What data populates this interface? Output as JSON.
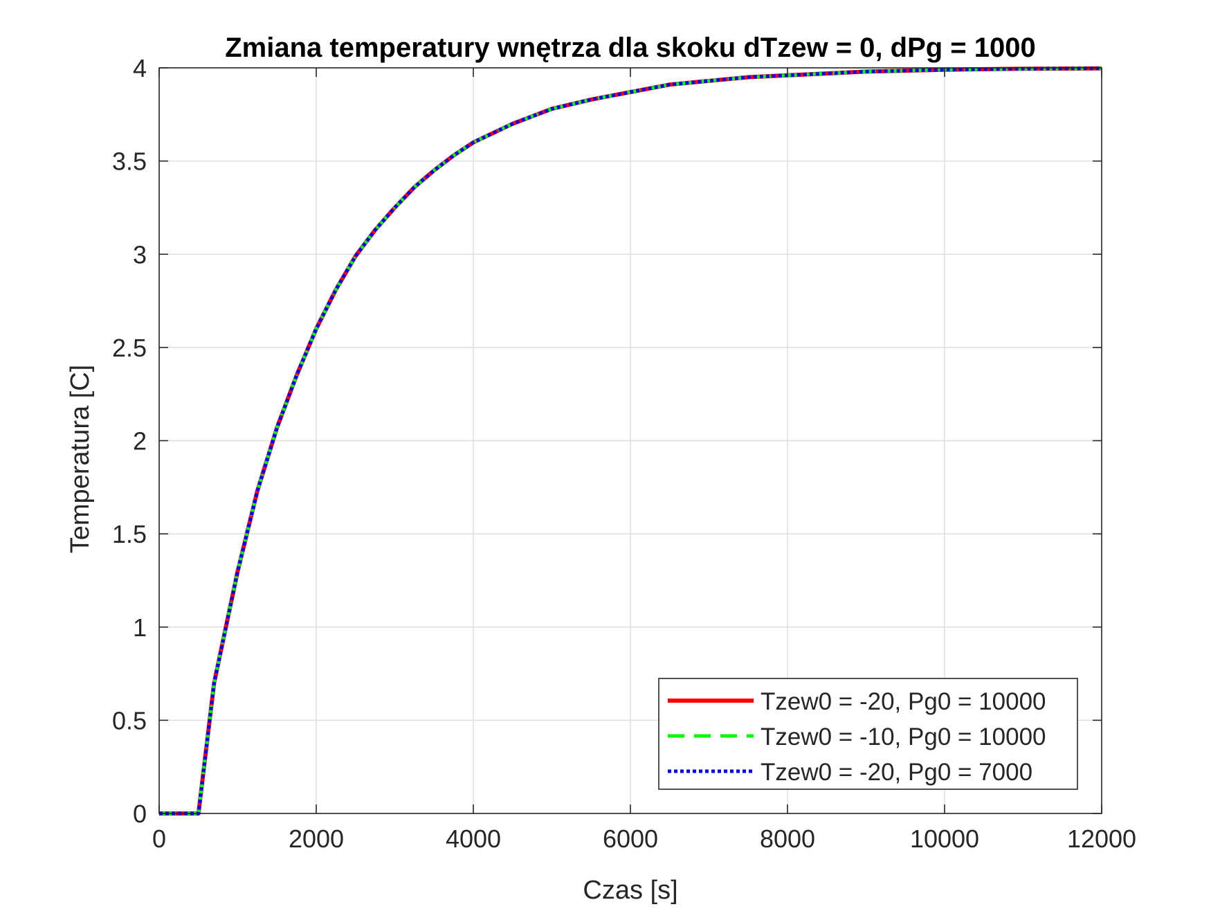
{
  "chart_data": {
    "type": "line",
    "title": "Zmiana temperatury wnętrza dla skoku dTzew = 0, dPg = 1000",
    "xlabel": "Czas [s]",
    "ylabel": "Temperatura [C]",
    "xlim": [
      0,
      12000
    ],
    "ylim": [
      0,
      4
    ],
    "xticks": [
      0,
      2000,
      4000,
      6000,
      8000,
      10000,
      12000
    ],
    "xtick_labels": [
      "0",
      "2000",
      "4000",
      "6000",
      "8000",
      "10000",
      "12000"
    ],
    "yticks": [
      0,
      0.5,
      1,
      1.5,
      2,
      2.5,
      3,
      3.5,
      4
    ],
    "ytick_labels": [
      "0",
      "0.5",
      "1",
      "1.5",
      "2",
      "2.5",
      "3",
      "3.5",
      "4"
    ],
    "grid": true,
    "legend_position": "bottom-right",
    "x": [
      0,
      500,
      700,
      1000,
      1250,
      1500,
      1750,
      2000,
      2250,
      2500,
      2750,
      3000,
      3250,
      3500,
      3750,
      4000,
      4500,
      5000,
      5500,
      6000,
      6500,
      7000,
      7500,
      8000,
      8500,
      9000,
      10000,
      11000,
      12000
    ],
    "series": [
      {
        "name": "Tzew0 = -20, Pg0 = 10000",
        "color": "#ff0000",
        "style": "solid",
        "values": [
          0,
          0,
          0.7,
          1.3,
          1.73,
          2.07,
          2.35,
          2.6,
          2.81,
          2.99,
          3.13,
          3.25,
          3.36,
          3.45,
          3.53,
          3.6,
          3.7,
          3.78,
          3.83,
          3.87,
          3.91,
          3.93,
          3.95,
          3.96,
          3.97,
          3.98,
          3.99,
          3.995,
          3.997
        ]
      },
      {
        "name": "Tzew0 = -10, Pg0 = 10000",
        "color": "#00ff00",
        "style": "dashed",
        "values": [
          0,
          0,
          0.7,
          1.3,
          1.73,
          2.07,
          2.35,
          2.6,
          2.81,
          2.99,
          3.13,
          3.25,
          3.36,
          3.45,
          3.53,
          3.6,
          3.7,
          3.78,
          3.83,
          3.87,
          3.91,
          3.93,
          3.95,
          3.96,
          3.97,
          3.98,
          3.99,
          3.995,
          3.997
        ]
      },
      {
        "name": "Tzew0 = -20, Pg0 = 7000",
        "color": "#0000ff",
        "style": "dotted",
        "values": [
          0,
          0,
          0.7,
          1.3,
          1.73,
          2.07,
          2.35,
          2.6,
          2.81,
          2.99,
          3.13,
          3.25,
          3.36,
          3.45,
          3.53,
          3.6,
          3.7,
          3.78,
          3.83,
          3.87,
          3.91,
          3.93,
          3.95,
          3.96,
          3.97,
          3.98,
          3.99,
          3.995,
          3.997
        ]
      }
    ]
  }
}
